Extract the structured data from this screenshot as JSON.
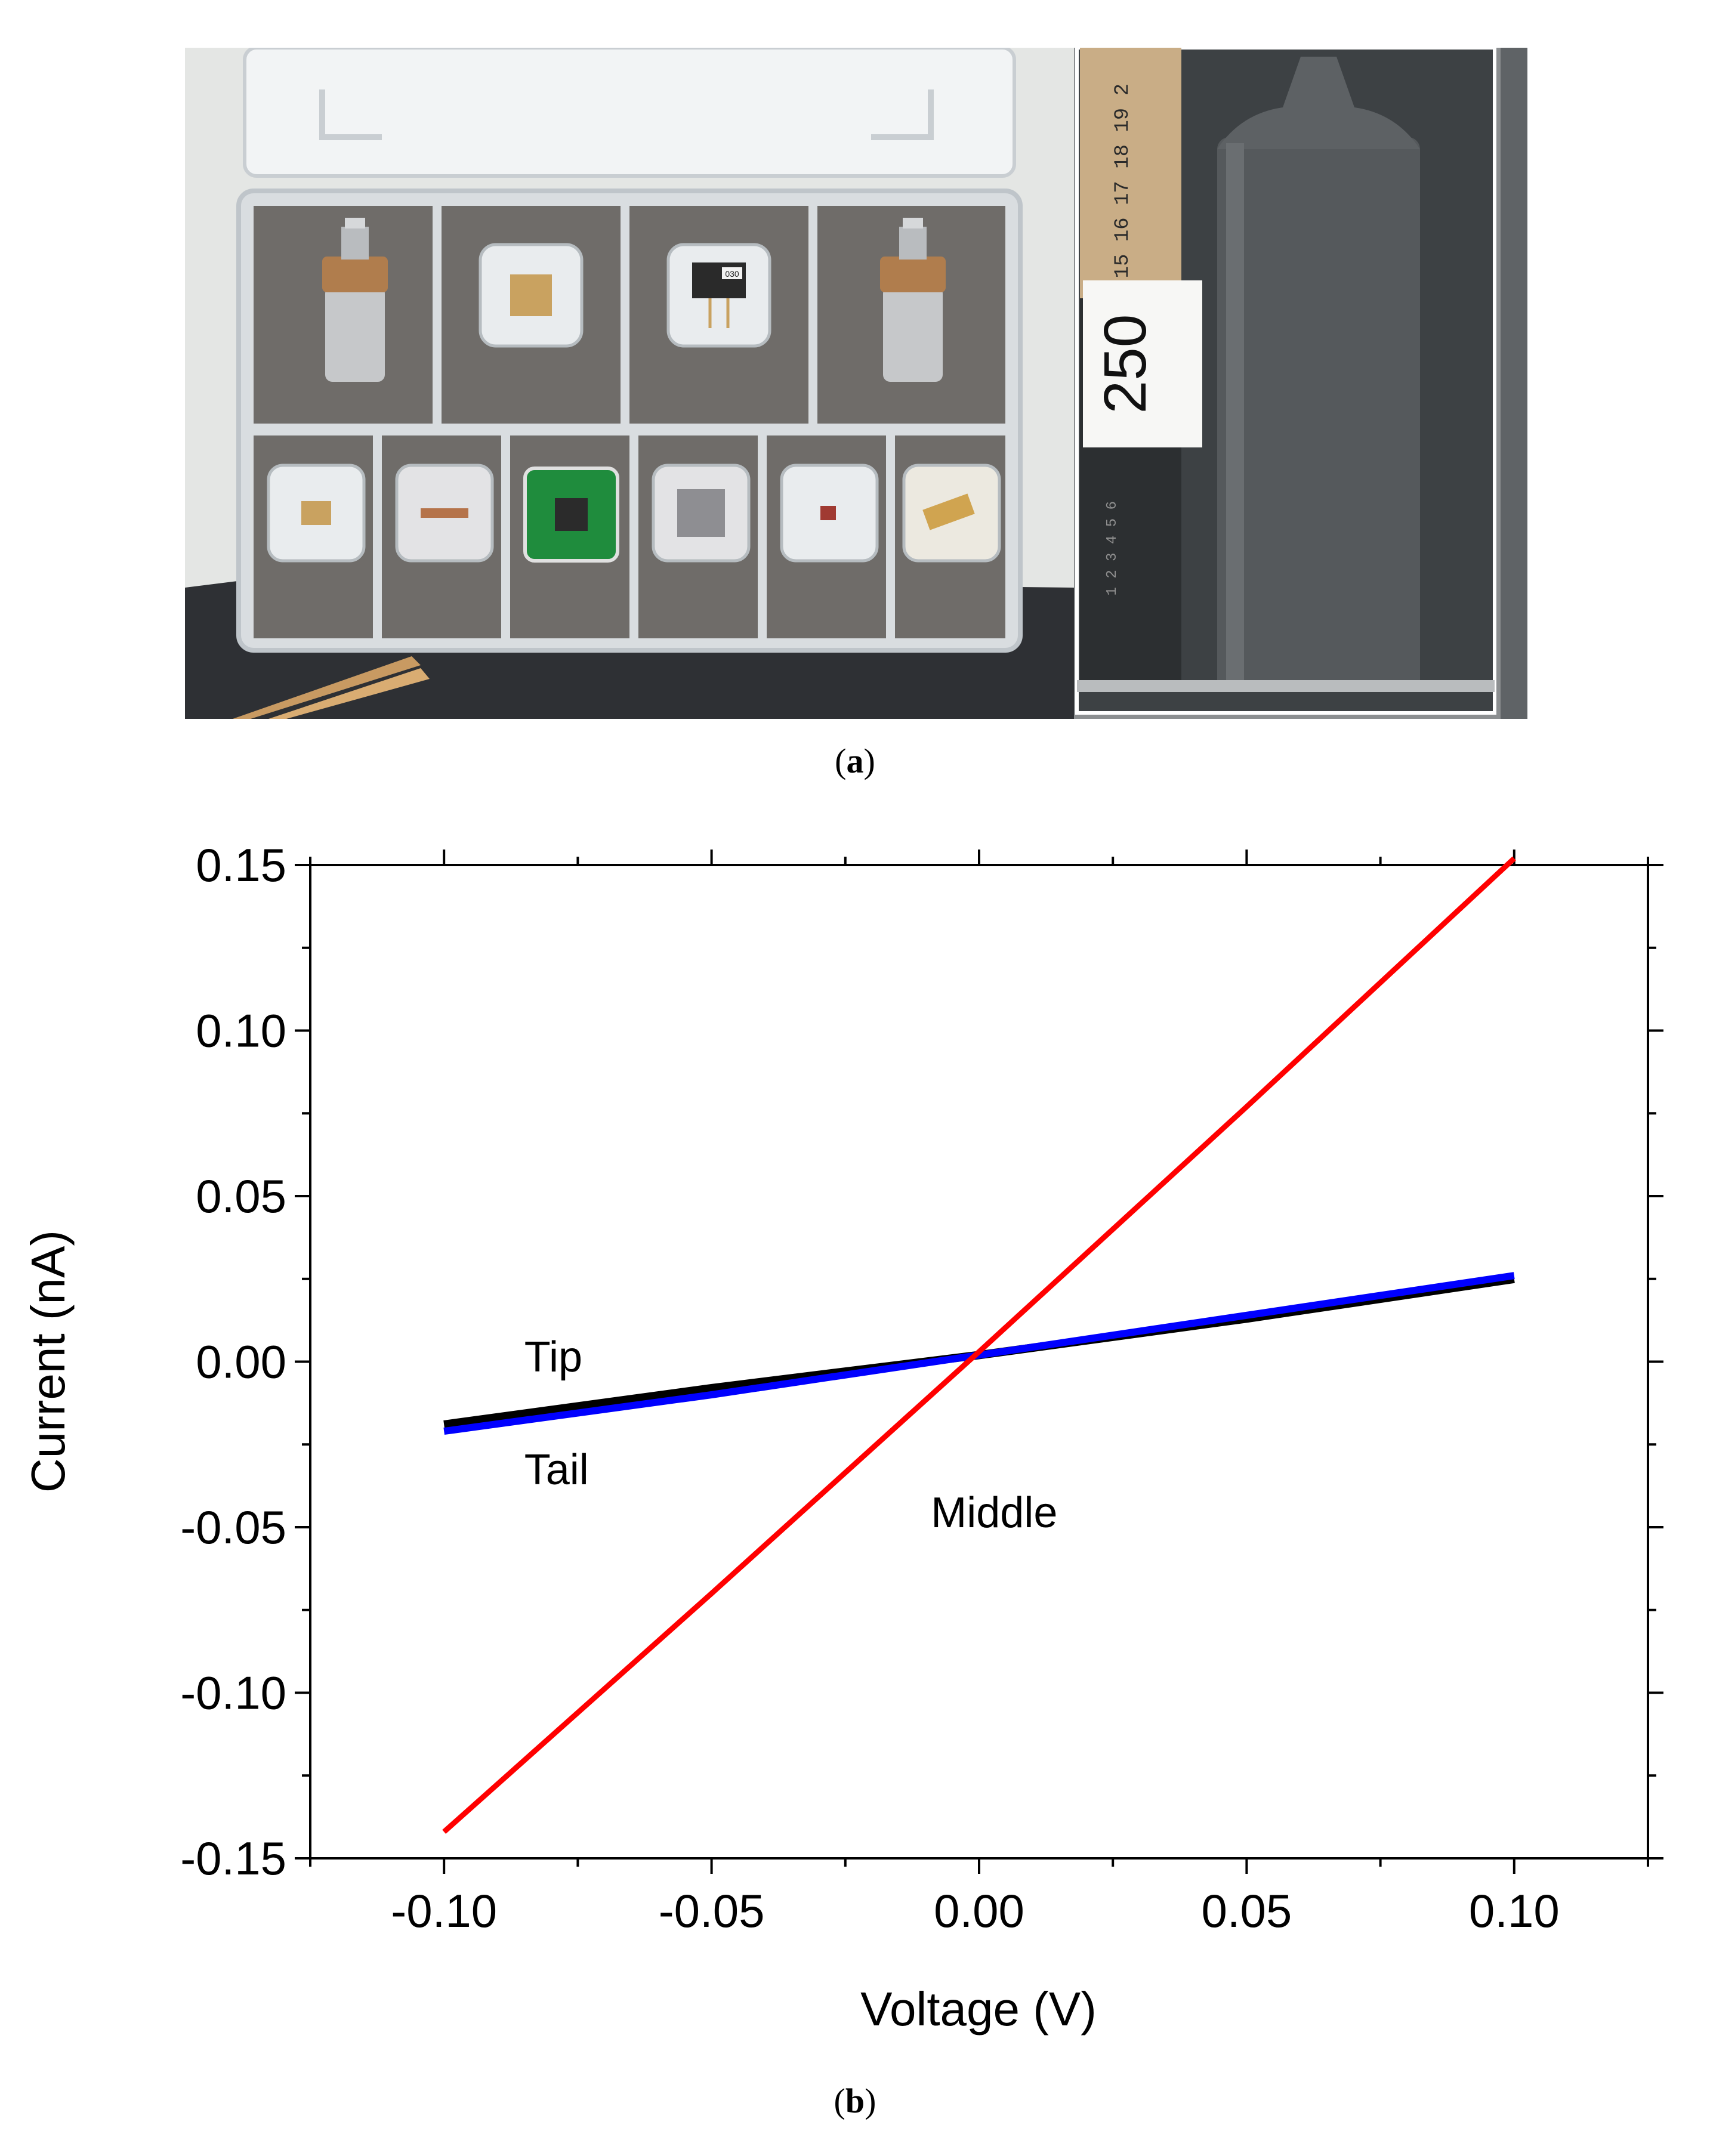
{
  "photo": {
    "label_card_text": "250",
    "ruler_numbers": "13 14 15 16 17 18 19 2",
    "ruler_lower_numbers": "1 2 3 4 5 6",
    "chip_tag_text": "030"
  },
  "captions": {
    "a": {
      "open": "(",
      "letter": "a",
      "close": ")"
    },
    "b": {
      "open": "(",
      "letter": "b",
      "close": ")"
    }
  },
  "colors": {
    "tip": "#000000",
    "tail": "#0000ff",
    "middle": "#ff0000"
  },
  "chart_data": {
    "type": "line",
    "xlabel": "Voltage (V)",
    "ylabel": "Current (nA)",
    "xlim": [
      -0.125,
      0.125
    ],
    "ylim": [
      -0.15,
      0.15
    ],
    "x_ticks": [
      -0.1,
      -0.05,
      0.0,
      0.05,
      0.1
    ],
    "x_tick_labels": [
      "-0.10",
      "-0.05",
      "0.00",
      "0.05",
      "0.10"
    ],
    "y_ticks": [
      0.15,
      0.1,
      0.05,
      0.0,
      -0.05,
      -0.1,
      -0.15
    ],
    "y_tick_labels": [
      "0.15",
      "0.10",
      "0.05",
      "0.00",
      "-0.05",
      "-0.10",
      "-0.15"
    ],
    "grid": false,
    "series": [
      {
        "name": "Tip",
        "color": "#000000",
        "x": [
          -0.1,
          -0.05,
          0.0,
          0.05,
          0.1
        ],
        "y": [
          -0.019,
          -0.008,
          0.002,
          0.013,
          0.025
        ]
      },
      {
        "name": "Tail",
        "color": "#0000ff",
        "x": [
          -0.1,
          -0.05,
          0.0,
          0.05,
          0.1
        ],
        "y": [
          -0.021,
          -0.01,
          0.002,
          0.014,
          0.026
        ]
      },
      {
        "name": "Middle",
        "color": "#ff0000",
        "x": [
          -0.1,
          -0.05,
          0.0,
          0.05,
          0.1
        ],
        "y": [
          -0.142,
          -0.07,
          0.003,
          0.077,
          0.152
        ]
      }
    ],
    "annotations": [
      {
        "text": "Tip",
        "x": -0.085,
        "y": -0.003
      },
      {
        "text": "Tail",
        "x": -0.085,
        "y": -0.037
      },
      {
        "text": "Middle",
        "x": -0.009,
        "y": -0.05
      }
    ]
  }
}
